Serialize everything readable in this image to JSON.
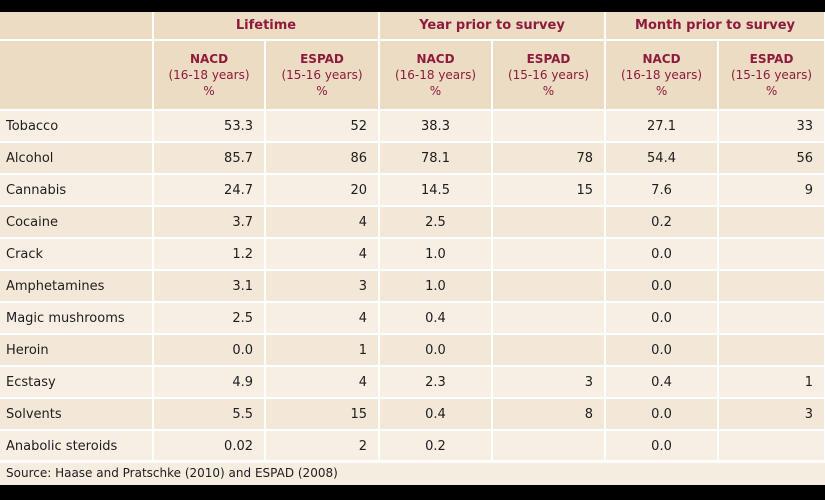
{
  "header": {
    "groups": [
      "Lifetime",
      "Year prior to survey",
      "Month prior to survey"
    ],
    "columns": [
      {
        "name": "NACD",
        "age": "(16-18 years)",
        "unit": "%"
      },
      {
        "name": "ESPAD",
        "age": "(15-16 years)",
        "unit": "%"
      },
      {
        "name": "NACD",
        "age": "(16-18 years)",
        "unit": "%"
      },
      {
        "name": "ESPAD",
        "age": "(15-16 years)",
        "unit": "%"
      },
      {
        "name": "NACD",
        "age": "(16-18 years)",
        "unit": "%"
      },
      {
        "name": "ESPAD",
        "age": "(15-16 years)",
        "unit": "%"
      }
    ]
  },
  "rows": [
    {
      "drug": "Tobacco",
      "values": [
        "53.3",
        "52",
        "38.3",
        "",
        "27.1",
        "33"
      ]
    },
    {
      "drug": "Alcohol",
      "values": [
        "85.7",
        "86",
        "78.1",
        "78",
        "54.4",
        "56"
      ]
    },
    {
      "drug": "Cannabis",
      "values": [
        "24.7",
        "20",
        "14.5",
        "15",
        "7.6",
        "9"
      ]
    },
    {
      "drug": "Cocaine",
      "values": [
        "3.7",
        "4",
        "2.5",
        "",
        "0.2",
        ""
      ]
    },
    {
      "drug": "Crack",
      "values": [
        "1.2",
        "4",
        "1.0",
        "",
        "0.0",
        ""
      ]
    },
    {
      "drug": "Amphetamines",
      "values": [
        "3.1",
        "3",
        "1.0",
        "",
        "0.0",
        ""
      ]
    },
    {
      "drug": "Magic mushrooms",
      "values": [
        "2.5",
        "4",
        "0.4",
        "",
        "0.0",
        ""
      ]
    },
    {
      "drug": "Heroin",
      "values": [
        "0.0",
        "1",
        "0.0",
        "",
        "0.0",
        ""
      ]
    },
    {
      "drug": "Ecstasy",
      "values": [
        "4.9",
        "4",
        "2.3",
        "3",
        "0.4",
        "1"
      ]
    },
    {
      "drug": "Solvents",
      "values": [
        "5.5",
        "15",
        "0.4",
        "8",
        "0.0",
        "3"
      ]
    },
    {
      "drug": "Anabolic steroids",
      "values": [
        "0.02",
        "2",
        "0.2",
        "",
        "0.0",
        ""
      ]
    }
  ],
  "source": "Source: Haase and Pratschke (2010) and ESPAD (2008)"
}
